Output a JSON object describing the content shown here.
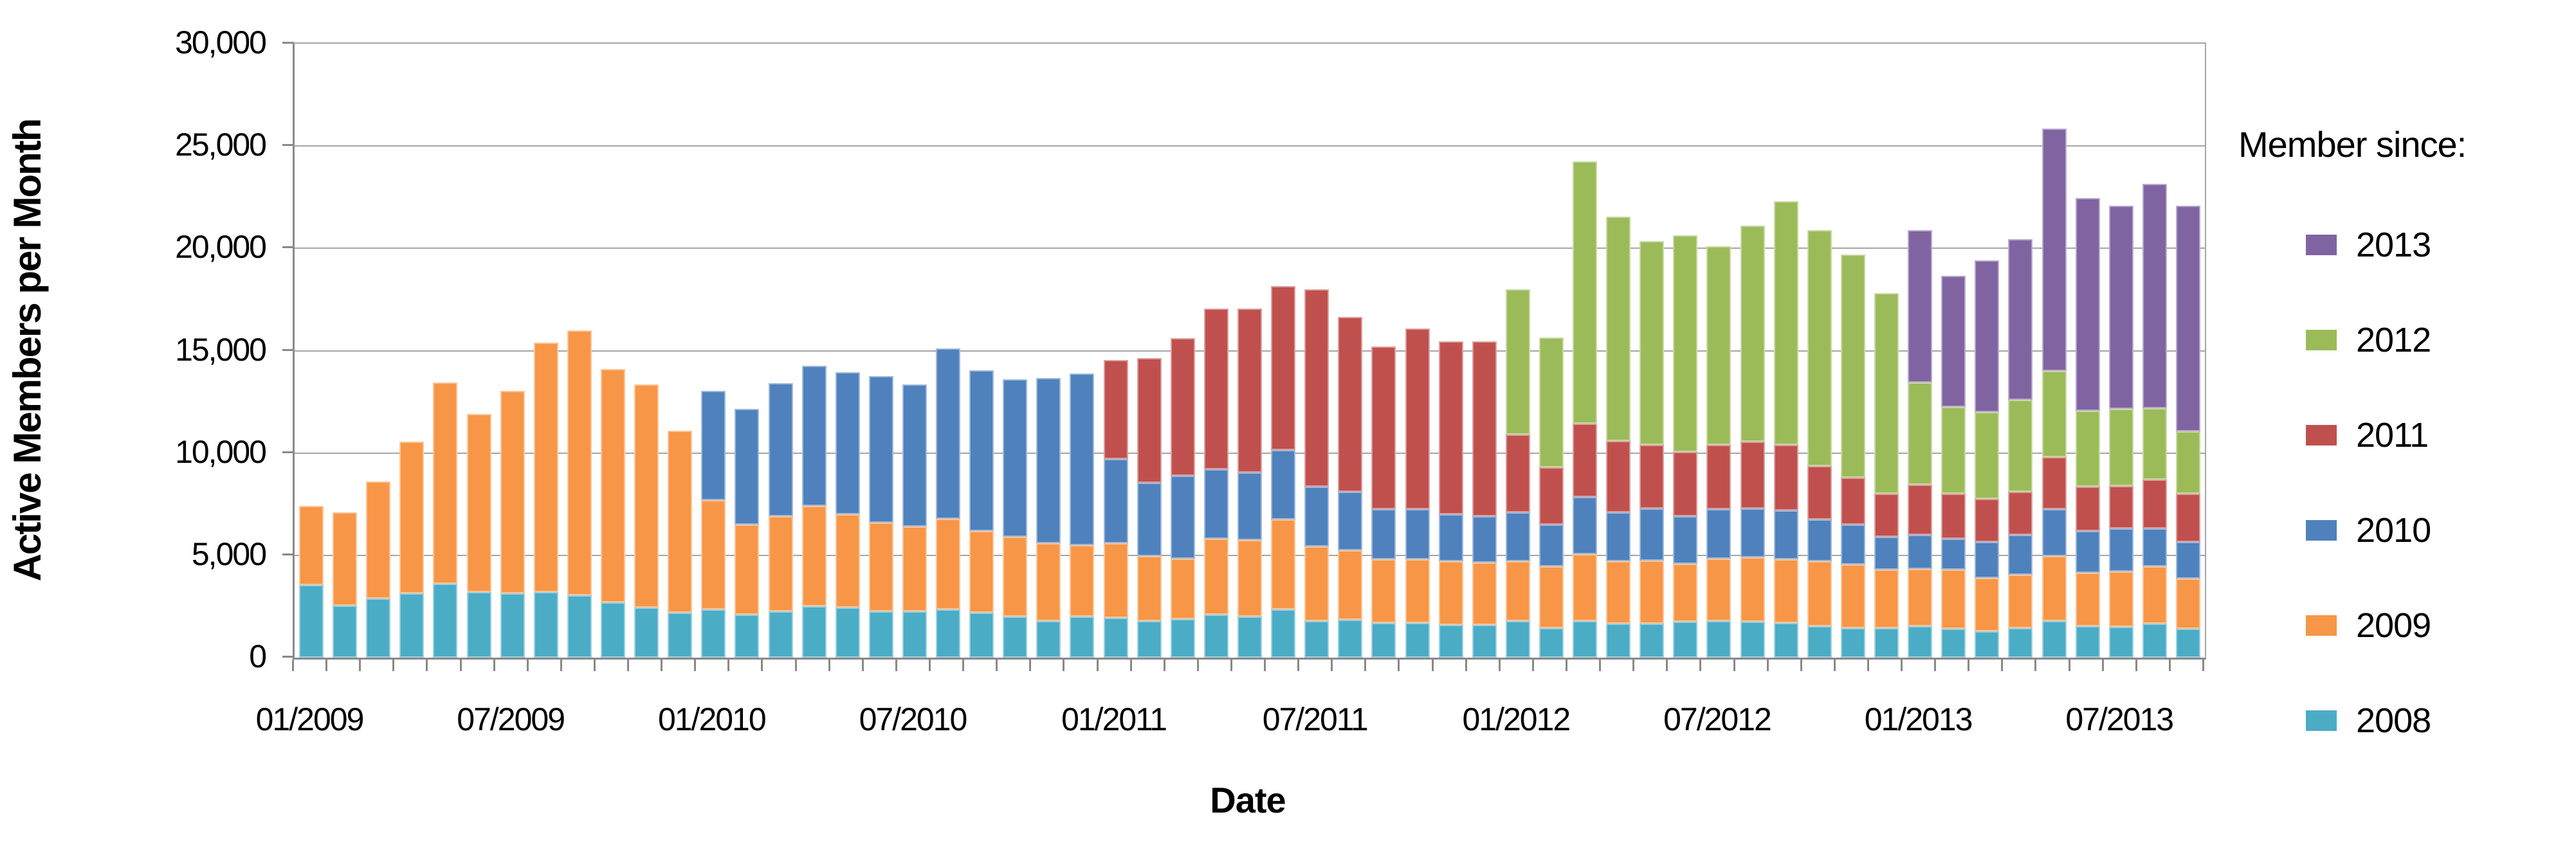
{
  "legend": {
    "title": "Member since:",
    "items": [
      {
        "label": "2013",
        "color": "#8064A2"
      },
      {
        "label": "2012",
        "color": "#9BBB59"
      },
      {
        "label": "2011",
        "color": "#C0504D"
      },
      {
        "label": "2010",
        "color": "#4F81BD"
      },
      {
        "label": "2009",
        "color": "#F79646"
      },
      {
        "label": "2008",
        "color": "#4BACC6"
      }
    ]
  },
  "style": {
    "background": "#FFFFFF",
    "gridline_color": "#A6A6A6",
    "axis_color": "#898989",
    "text_color": "#000000"
  },
  "chart_data": {
    "type": "bar",
    "stacked": true,
    "title": "",
    "xlabel": "Date",
    "ylabel": "Active Members per Month",
    "ylim": [
      0,
      30000
    ],
    "ytick_step": 5000,
    "ytick_values": [
      0,
      5000,
      10000,
      15000,
      20000,
      25000,
      30000
    ],
    "ytick_labels": [
      "0",
      "5,000",
      "10,000",
      "15,000",
      "20,000",
      "25,000",
      "30,000"
    ],
    "grid": true,
    "legend_position": "right",
    "categories": [
      "01/2009",
      "02/2009",
      "03/2009",
      "04/2009",
      "05/2009",
      "06/2009",
      "07/2009",
      "08/2009",
      "09/2009",
      "10/2009",
      "11/2009",
      "12/2009",
      "01/2010",
      "02/2010",
      "03/2010",
      "04/2010",
      "05/2010",
      "06/2010",
      "07/2010",
      "08/2010",
      "09/2010",
      "10/2010",
      "11/2010",
      "12/2010",
      "01/2011",
      "02/2011",
      "03/2011",
      "04/2011",
      "05/2011",
      "06/2011",
      "07/2011",
      "08/2011",
      "09/2011",
      "10/2011",
      "11/2011",
      "12/2011",
      "01/2012",
      "02/2012",
      "03/2012",
      "04/2012",
      "05/2012",
      "06/2012",
      "07/2012",
      "08/2012",
      "09/2012",
      "10/2012",
      "11/2012",
      "12/2012",
      "01/2013",
      "02/2013",
      "03/2013",
      "04/2013",
      "05/2013",
      "06/2013",
      "07/2013",
      "08/2013",
      "09/2013"
    ],
    "xtick_indices": [
      0,
      6,
      12,
      18,
      24,
      30,
      36,
      42,
      48,
      54
    ],
    "xtick_labels_shown": [
      "01/2009",
      "07/2009",
      "01/2010",
      "07/2010",
      "01/2011",
      "07/2011",
      "01/2012",
      "07/2012",
      "01/2013",
      "07/2013"
    ],
    "series": [
      {
        "name": "2008",
        "color": "#4BACC6",
        "values": [
          3550,
          2550,
          2900,
          3150,
          3600,
          3200,
          3150,
          3200,
          3050,
          2700,
          2450,
          2200,
          2350,
          2100,
          2250,
          2500,
          2450,
          2250,
          2250,
          2350,
          2200,
          2000,
          1800,
          2000,
          1950,
          1800,
          1900,
          2100,
          2000,
          2350,
          1800,
          1850,
          1700,
          1700,
          1600,
          1600,
          1800,
          1450,
          1800,
          1650,
          1650,
          1750,
          1800,
          1750,
          1700,
          1550,
          1450,
          1450,
          1550,
          1400,
          1300,
          1450,
          1800,
          1550,
          1500,
          1650,
          1400
        ]
      },
      {
        "name": "2009",
        "color": "#F79646",
        "values": [
          3850,
          4550,
          5700,
          7400,
          9850,
          8700,
          9900,
          12200,
          12950,
          11400,
          10900,
          8900,
          5350,
          4400,
          4650,
          4900,
          4550,
          4350,
          4150,
          4450,
          4000,
          3900,
          3800,
          3500,
          3650,
          3150,
          2950,
          3700,
          3750,
          4400,
          3650,
          3400,
          3100,
          3100,
          3100,
          3050,
          2900,
          3000,
          3250,
          3050,
          3100,
          2850,
          3050,
          3150,
          3100,
          3150,
          3100,
          2850,
          2800,
          2900,
          2600,
          2600,
          3150,
          2600,
          2700,
          2800,
          2450
        ]
      },
      {
        "name": "2010",
        "color": "#4F81BD",
        "values": [
          0,
          0,
          0,
          0,
          0,
          0,
          0,
          0,
          0,
          0,
          0,
          0,
          5350,
          5650,
          6500,
          6850,
          6950,
          7150,
          6950,
          8300,
          7850,
          7700,
          8050,
          8400,
          4100,
          3600,
          4050,
          3400,
          3300,
          3400,
          2900,
          2850,
          2450,
          2450,
          2300,
          2250,
          2400,
          2050,
          2800,
          2400,
          2550,
          2300,
          2400,
          2400,
          2400,
          2050,
          1950,
          1600,
          1650,
          1500,
          1750,
          1950,
          2300,
          2050,
          2100,
          1850,
          1800
        ]
      },
      {
        "name": "2011",
        "color": "#C0504D",
        "values": [
          0,
          0,
          0,
          0,
          0,
          0,
          0,
          0,
          0,
          0,
          0,
          0,
          0,
          0,
          0,
          0,
          0,
          0,
          0,
          0,
          0,
          0,
          0,
          0,
          4850,
          6100,
          6700,
          7850,
          8000,
          8000,
          9650,
          8550,
          7950,
          8850,
          8450,
          8550,
          3800,
          2800,
          3600,
          3500,
          3100,
          3150,
          3150,
          3250,
          3200,
          2600,
          2300,
          2100,
          2450,
          2200,
          2100,
          2100,
          2550,
          2150,
          2100,
          2400,
          2350
        ]
      },
      {
        "name": "2012",
        "color": "#9BBB59",
        "values": [
          0,
          0,
          0,
          0,
          0,
          0,
          0,
          0,
          0,
          0,
          0,
          0,
          0,
          0,
          0,
          0,
          0,
          0,
          0,
          0,
          0,
          0,
          0,
          0,
          0,
          0,
          0,
          0,
          0,
          0,
          0,
          0,
          0,
          0,
          0,
          0,
          7100,
          6350,
          12800,
          10950,
          9950,
          10600,
          9700,
          10550,
          11900,
          11550,
          10900,
          9800,
          5000,
          4250,
          4250,
          4500,
          4200,
          3700,
          3750,
          3500,
          3050
        ]
      },
      {
        "name": "2013",
        "color": "#8064A2",
        "values": [
          0,
          0,
          0,
          0,
          0,
          0,
          0,
          0,
          0,
          0,
          0,
          0,
          0,
          0,
          0,
          0,
          0,
          0,
          0,
          0,
          0,
          0,
          0,
          0,
          0,
          0,
          0,
          0,
          0,
          0,
          0,
          0,
          0,
          0,
          0,
          0,
          0,
          0,
          0,
          0,
          0,
          0,
          0,
          0,
          0,
          0,
          0,
          0,
          7450,
          6400,
          7400,
          7850,
          11850,
          10400,
          9950,
          10950,
          11050
        ]
      }
    ]
  }
}
